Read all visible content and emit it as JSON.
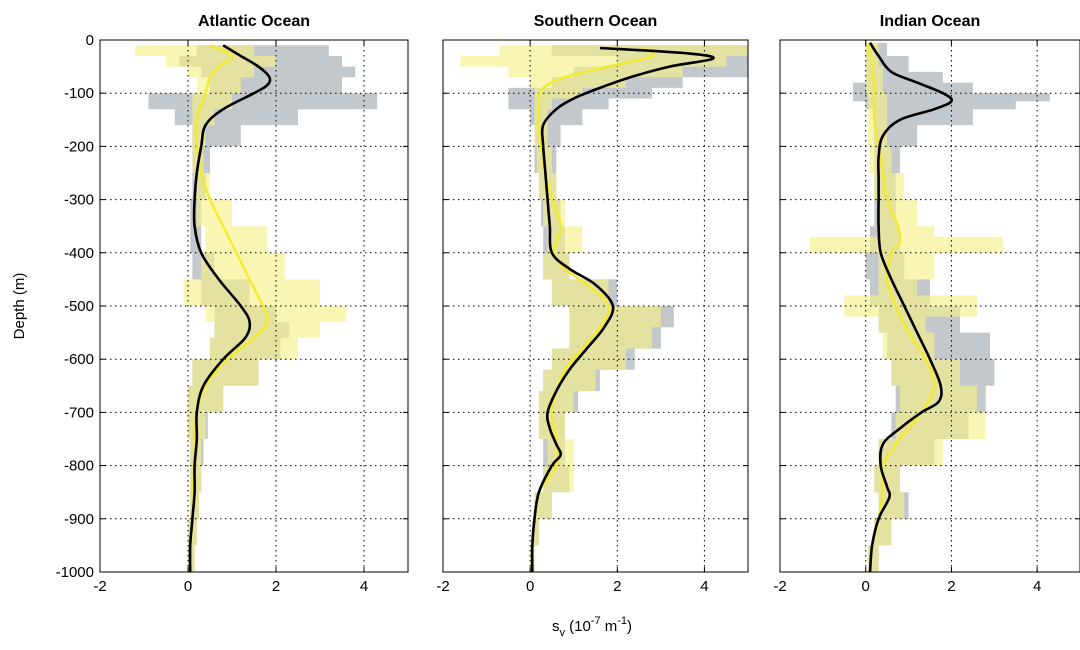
{
  "figure": {
    "ylabel": "Depth (m)",
    "xlabel_main": "s",
    "xlabel_sub": "v",
    "xlabel_rest_a": " (10",
    "xlabel_sup": "-7",
    "xlabel_rest_b": " m",
    "xlabel_sup2": "-1",
    "xlabel_close": ")"
  },
  "colors": {
    "gray_band": "#b9bec3",
    "yellow_band": "#f6f08a",
    "overlap_band": "#b5b47a",
    "mean_a": "#000000",
    "mean_b": "#f2ea2a"
  },
  "chart_data": [
    {
      "type": "line",
      "title": "Atlantic Ocean",
      "xlim": [
        -2,
        5
      ],
      "ylim": [
        -1000,
        0
      ],
      "xticks": [
        -2,
        0,
        2,
        4
      ],
      "yticks": [
        0,
        -100,
        -200,
        -300,
        -400,
        -500,
        -600,
        -700,
        -800,
        -900,
        -1000
      ],
      "grid": true,
      "series": [
        {
          "style": "black-line",
          "depth": [
            -10,
            -30,
            -50,
            -70,
            -85,
            -100,
            -130,
            -160,
            -200,
            -250,
            -300,
            -350,
            -400,
            -450,
            -500,
            -530,
            -560,
            -600,
            -650,
            -700,
            -750,
            -800,
            -850,
            -900,
            -950,
            -1000
          ],
          "values": [
            0.8,
            1.2,
            1.6,
            1.85,
            1.8,
            1.5,
            0.8,
            0.4,
            0.3,
            0.2,
            0.15,
            0.15,
            0.3,
            0.7,
            1.2,
            1.4,
            1.3,
            0.8,
            0.35,
            0.2,
            0.2,
            0.15,
            0.15,
            0.1,
            0.05,
            0.05
          ]
        },
        {
          "style": "yellow-line",
          "depth": [
            -10,
            -30,
            -50,
            -70,
            -100,
            -150,
            -200,
            -250,
            -300,
            -350,
            -400,
            -450,
            -500,
            -530,
            -560,
            -600,
            -650,
            -700,
            -750,
            -800,
            -850,
            -900,
            -950,
            -1000
          ],
          "values": [
            0.5,
            1.0,
            0.7,
            0.5,
            0.4,
            0.2,
            0.2,
            0.3,
            0.5,
            0.8,
            1.1,
            1.4,
            1.7,
            1.8,
            1.5,
            0.9,
            0.4,
            0.2,
            0.15,
            0.15,
            0.1,
            0.1,
            0.05,
            0.05
          ]
        },
        {
          "style": "gray-band",
          "depth": [
            -10,
            -30,
            -50,
            -70,
            -100,
            -130,
            -160,
            -200,
            -250,
            -300,
            -350,
            -400,
            -450,
            -500,
            -530,
            -560,
            -600,
            -650,
            -700,
            -750,
            -800,
            -850,
            -900,
            -950,
            -1000
          ],
          "lower": [
            0.2,
            -0.2,
            0.3,
            0.5,
            -0.9,
            -0.3,
            0.1,
            0.1,
            0.1,
            0.05,
            0.05,
            0.1,
            0.3,
            0.6,
            0.6,
            0.5,
            0.1,
            0.0,
            0.0,
            0.05,
            0.05,
            0.05,
            0.0,
            0.0,
            0.0
          ],
          "upper": [
            3.2,
            3.5,
            3.8,
            3.5,
            4.3,
            2.5,
            1.2,
            0.5,
            0.4,
            0.3,
            0.3,
            0.6,
            1.4,
            2.0,
            2.3,
            2.1,
            1.6,
            0.8,
            0.45,
            0.35,
            0.3,
            0.25,
            0.2,
            0.15,
            0.1
          ]
        },
        {
          "style": "yellow-band",
          "depth": [
            -10,
            -30,
            -50,
            -70,
            -100,
            -130,
            -160,
            -200,
            -250,
            -300,
            -350,
            -400,
            -450,
            -500,
            -530,
            -560,
            -600,
            -650,
            -700,
            -750,
            -800,
            -850,
            -900,
            -950,
            -1000
          ],
          "lower": [
            -1.2,
            -0.5,
            0.0,
            0.2,
            0.1,
            0.1,
            0.1,
            0.1,
            0.15,
            0.2,
            0.4,
            0.3,
            -0.1,
            0.4,
            0.6,
            0.5,
            0.1,
            0.0,
            0.0,
            0.05,
            0.05,
            0.05,
            0.0,
            0.0,
            0.0
          ],
          "upper": [
            1.5,
            2.0,
            1.5,
            1.2,
            1.0,
            0.6,
            0.4,
            0.35,
            0.5,
            1.0,
            1.8,
            2.2,
            3.0,
            3.6,
            3.0,
            2.5,
            1.6,
            0.8,
            0.4,
            0.3,
            0.3,
            0.25,
            0.2,
            0.15,
            0.1
          ]
        }
      ]
    },
    {
      "type": "line",
      "title": "Southern Ocean",
      "xlim": [
        -2,
        5
      ],
      "ylim": [
        -1000,
        0
      ],
      "xticks": [
        -2,
        0,
        2,
        4
      ],
      "yticks": [
        0,
        -100,
        -200,
        -300,
        -400,
        -500,
        -600,
        -700,
        -800,
        -900,
        -1000
      ],
      "grid": true,
      "series": [
        {
          "style": "black-line",
          "depth": [
            -15,
            -25,
            -35,
            -50,
            -70,
            -90,
            -110,
            -130,
            -160,
            -200,
            -250,
            -300,
            -350,
            -400,
            -430,
            -460,
            -500,
            -540,
            -580,
            -620,
            -660,
            -700,
            -730,
            -760,
            -780,
            -800,
            -850,
            -900,
            -950,
            -1000
          ],
          "values": [
            1.6,
            3.6,
            4.2,
            3.2,
            2.3,
            1.6,
            1.0,
            0.6,
            0.3,
            0.3,
            0.35,
            0.4,
            0.45,
            0.5,
            0.9,
            1.5,
            1.9,
            1.7,
            1.3,
            0.9,
            0.6,
            0.4,
            0.45,
            0.6,
            0.7,
            0.5,
            0.2,
            0.1,
            0.05,
            0.05
          ]
        },
        {
          "style": "yellow-line",
          "depth": [
            -15,
            -30,
            -50,
            -70,
            -90,
            -110,
            -130,
            -160,
            -200,
            -250,
            -300,
            -350,
            -400,
            -430,
            -460,
            -500,
            -540,
            -580,
            -620,
            -660,
            -700,
            -750,
            -800,
            -850,
            -900,
            -950,
            -1000
          ],
          "values": [
            2.5,
            2.8,
            1.8,
            0.8,
            0.3,
            0.2,
            0.2,
            0.2,
            0.25,
            0.35,
            0.5,
            0.7,
            0.55,
            0.8,
            1.3,
            1.8,
            1.6,
            1.2,
            0.8,
            0.6,
            0.5,
            0.6,
            0.6,
            0.2,
            0.1,
            0.05,
            0.05
          ]
        },
        {
          "style": "gray-band",
          "depth": [
            -10,
            -30,
            -50,
            -70,
            -90,
            -110,
            -130,
            -160,
            -200,
            -250,
            -300,
            -350,
            -400,
            -450,
            -500,
            -540,
            -580,
            -620,
            -660,
            -700,
            -750,
            -800,
            -850,
            -900,
            -950,
            -1000
          ],
          "lower": [
            0.5,
            2.0,
            1.0,
            0.5,
            -0.5,
            -0.5,
            0.0,
            0.1,
            0.1,
            0.2,
            0.25,
            0.3,
            0.3,
            0.5,
            0.9,
            0.9,
            0.5,
            0.3,
            0.2,
            0.2,
            0.3,
            0.3,
            0.1,
            0.05,
            0.0,
            0.0
          ],
          "upper": [
            5.0,
            5.0,
            5.0,
            3.5,
            2.8,
            1.8,
            1.2,
            0.7,
            0.6,
            0.6,
            0.7,
            0.8,
            0.9,
            2.0,
            3.3,
            3.0,
            2.4,
            1.6,
            1.1,
            0.8,
            0.8,
            0.9,
            0.5,
            0.2,
            0.1,
            0.1
          ]
        },
        {
          "style": "yellow-band",
          "depth": [
            -10,
            -30,
            -50,
            -70,
            -90,
            -110,
            -130,
            -160,
            -200,
            -250,
            -300,
            -350,
            -400,
            -450,
            -500,
            -540,
            -580,
            -620,
            -660,
            -700,
            -750,
            -800,
            -850,
            -900,
            -950,
            -1000
          ],
          "lower": [
            -0.7,
            -1.6,
            -0.5,
            0.0,
            0.1,
            0.1,
            0.1,
            0.1,
            0.15,
            0.2,
            0.3,
            0.4,
            0.3,
            0.5,
            0.9,
            0.9,
            0.5,
            0.3,
            0.2,
            0.2,
            0.4,
            0.3,
            0.1,
            0.05,
            0.0,
            0.0
          ],
          "upper": [
            5.0,
            4.5,
            3.5,
            2.2,
            1.2,
            0.5,
            0.4,
            0.4,
            0.5,
            0.6,
            0.8,
            1.2,
            0.9,
            1.8,
            3.0,
            2.8,
            2.2,
            1.5,
            1.0,
            0.8,
            1.0,
            1.0,
            0.5,
            0.2,
            0.1,
            0.1
          ]
        }
      ]
    },
    {
      "type": "line",
      "title": "Indian Ocean",
      "xlim": [
        -2,
        5
      ],
      "ylim": [
        -1000,
        0
      ],
      "xticks": [
        -2,
        0,
        2,
        4
      ],
      "yticks": [
        0,
        -100,
        -200,
        -300,
        -400,
        -500,
        -600,
        -700,
        -800,
        -900,
        -1000
      ],
      "grid": true,
      "series": [
        {
          "style": "black-line",
          "depth": [
            -5,
            -30,
            -60,
            -80,
            -100,
            -115,
            -130,
            -150,
            -180,
            -220,
            -260,
            -300,
            -350,
            -400,
            -450,
            -500,
            -550,
            -600,
            -650,
            -680,
            -700,
            -730,
            -760,
            -800,
            -840,
            -860,
            -900,
            -950,
            -1000
          ],
          "values": [
            0.1,
            0.3,
            0.6,
            1.2,
            1.8,
            2.0,
            1.6,
            0.8,
            0.4,
            0.3,
            0.3,
            0.3,
            0.3,
            0.35,
            0.6,
            0.9,
            1.2,
            1.5,
            1.75,
            1.7,
            1.3,
            0.8,
            0.4,
            0.35,
            0.5,
            0.55,
            0.3,
            0.15,
            0.1
          ]
        },
        {
          "style": "yellow-line",
          "depth": [
            -5,
            -50,
            -100,
            -150,
            -200,
            -250,
            -300,
            -350,
            -380,
            -400,
            -450,
            -500,
            -550,
            -600,
            -650,
            -700,
            -750,
            -800,
            -850,
            -900,
            -950,
            -1000
          ],
          "values": [
            0.05,
            0.15,
            0.2,
            0.2,
            0.3,
            0.4,
            0.5,
            0.75,
            0.8,
            0.6,
            0.5,
            0.7,
            1.0,
            1.4,
            1.6,
            1.3,
            0.8,
            0.4,
            0.4,
            0.3,
            0.15,
            0.1
          ]
        },
        {
          "style": "gray-band",
          "depth": [
            -5,
            -30,
            -60,
            -80,
            -100,
            -115,
            -130,
            -160,
            -200,
            -250,
            -300,
            -350,
            -400,
            -450,
            -500,
            -550,
            -600,
            -650,
            -700,
            -750,
            -800,
            -850,
            -900,
            -950,
            -1000
          ],
          "lower": [
            0.0,
            0.0,
            0.0,
            -0.3,
            -0.3,
            0.0,
            0.2,
            0.2,
            0.2,
            0.2,
            0.2,
            0.1,
            0.0,
            0.1,
            0.3,
            0.5,
            0.6,
            0.7,
            0.6,
            0.3,
            0.2,
            0.3,
            0.2,
            0.05,
            0.05
          ],
          "upper": [
            0.5,
            1.0,
            1.8,
            2.5,
            4.3,
            3.5,
            2.5,
            1.2,
            0.8,
            0.7,
            0.7,
            0.8,
            0.9,
            1.5,
            2.2,
            2.9,
            3.0,
            2.8,
            2.4,
            1.6,
            0.8,
            1.0,
            0.6,
            0.3,
            0.3
          ]
        },
        {
          "style": "yellow-band",
          "depth": [
            -5,
            -50,
            -100,
            -150,
            -200,
            -250,
            -300,
            -350,
            -370,
            -400,
            -450,
            -480,
            -500,
            -520,
            -550,
            -600,
            -650,
            -700,
            -750,
            -800,
            -850,
            -900,
            -950,
            -1000
          ],
          "lower": [
            0.0,
            0.0,
            0.05,
            0.05,
            0.1,
            0.2,
            0.3,
            0.3,
            -1.3,
            0.3,
            0.3,
            -0.5,
            -0.5,
            0.3,
            0.4,
            0.6,
            0.8,
            0.7,
            0.3,
            0.2,
            0.3,
            0.2,
            0.05,
            0.05
          ],
          "upper": [
            0.3,
            0.4,
            0.5,
            0.5,
            0.6,
            0.9,
            1.2,
            1.6,
            3.2,
            1.6,
            1.2,
            2.6,
            2.6,
            1.4,
            1.6,
            2.2,
            2.6,
            2.8,
            1.8,
            0.8,
            0.9,
            0.6,
            0.3,
            0.3
          ]
        }
      ]
    }
  ]
}
